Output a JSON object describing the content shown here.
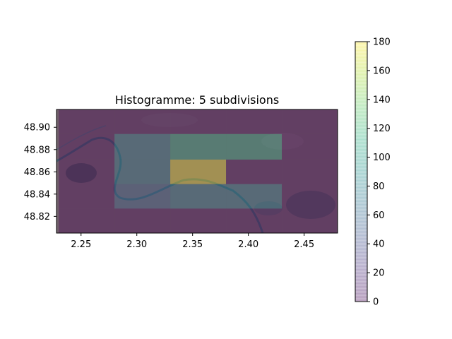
{
  "chart_data": {
    "type": "heatmap",
    "title": "Histogramme: 5 subdivisions",
    "xlabel": "",
    "ylabel": "",
    "xlim": [
      2.228,
      2.48
    ],
    "ylim": [
      48.805,
      48.916
    ],
    "x_ticks": [
      "2.25",
      "2.30",
      "2.35",
      "2.40",
      "2.45"
    ],
    "y_ticks": [
      "48.82",
      "48.84",
      "48.86",
      "48.88",
      "48.90"
    ],
    "background": "satellite map of Paris (Seine river visible)",
    "x_edges": [
      2.23,
      2.28,
      2.33,
      2.38,
      2.43,
      2.48
    ],
    "y_edges": [
      48.805,
      48.827,
      48.849,
      48.871,
      48.894,
      48.916
    ],
    "values": [
      [
        0,
        0,
        0,
        0,
        0
      ],
      [
        0,
        55,
        75,
        75,
        0
      ],
      [
        0,
        75,
        180,
        0,
        0
      ],
      [
        0,
        75,
        110,
        110,
        0
      ],
      [
        0,
        0,
        0,
        0,
        0
      ]
    ],
    "colormap": "viridis",
    "overlay_alpha": 0.35,
    "colorbar": {
      "min": 0,
      "max": 180,
      "ticks": [
        "0",
        "20",
        "40",
        "60",
        "80",
        "100",
        "120",
        "140",
        "160",
        "180"
      ]
    },
    "grid": false
  }
}
